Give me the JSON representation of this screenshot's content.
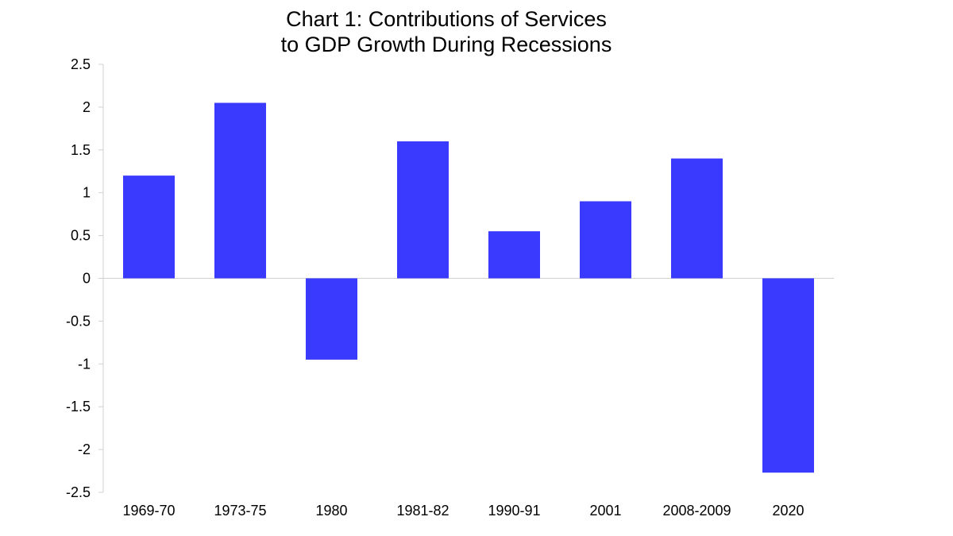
{
  "chart_data": {
    "type": "bar",
    "title_lines": [
      "Chart 1: Contributions of Services",
      "to GDP Growth During Recessions"
    ],
    "categories": [
      "1969-70",
      "1973-75",
      "1980",
      "1981-82",
      "1990-91",
      "2001",
      "2008-2009",
      "2020"
    ],
    "values": [
      1.2,
      2.05,
      -0.95,
      1.6,
      0.55,
      0.9,
      1.4,
      -2.27
    ],
    "yticks": [
      "2.5",
      "2",
      "1.5",
      "1",
      "0.5",
      "0",
      "-0.5",
      "-1",
      "-1.5",
      "-2",
      "-2.5"
    ],
    "ylim": [
      -2.5,
      2.5
    ],
    "xlabel": "",
    "ylabel": "",
    "grid": false,
    "legend": "none",
    "colors": {
      "bar": "#3a3afe",
      "axis": "#d0d0d0",
      "text": "#000000"
    }
  }
}
